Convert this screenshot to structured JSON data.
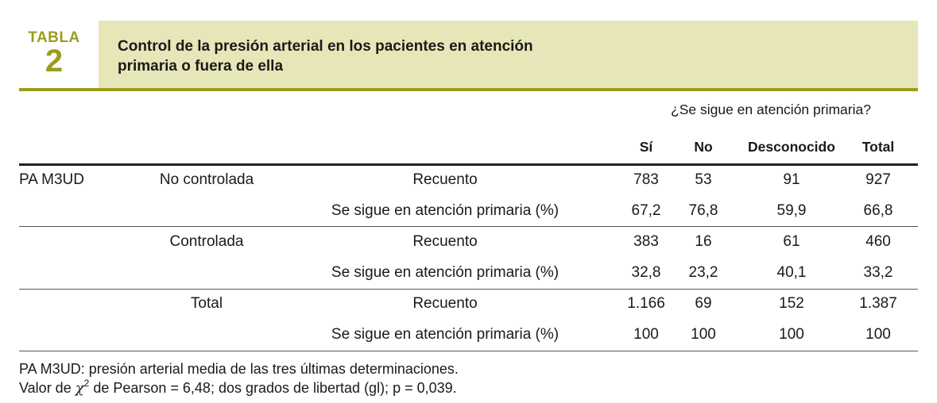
{
  "header": {
    "tabla_label": "TABLA",
    "tabla_number": "2",
    "title_line1": "Control de la presión arterial en los pacientes en atención",
    "title_line2": "primaria o fuera de ella"
  },
  "table": {
    "super_header": "¿Se sigue en atención primaria?",
    "columns": [
      "Sí",
      "No",
      "Desconocido",
      "Total"
    ],
    "rows": [
      {
        "group": "PA M3UD",
        "subgroup": "No controlada",
        "measure": "Recuento",
        "values": [
          "783",
          "53",
          "91",
          "927"
        ]
      },
      {
        "group": "",
        "subgroup": "",
        "measure": "Se sigue en atención primaria (%)",
        "values": [
          "67,2",
          "76,8",
          "59,9",
          "66,8"
        ]
      },
      {
        "group": "",
        "subgroup": "Controlada",
        "measure": "Recuento",
        "values": [
          "383",
          "16",
          "61",
          "460"
        ]
      },
      {
        "group": "",
        "subgroup": "",
        "measure": "Se sigue en atención primaria (%)",
        "values": [
          "32,8",
          "23,2",
          "40,1",
          "33,2"
        ]
      },
      {
        "group": "",
        "subgroup": "Total",
        "measure": "Recuento",
        "values": [
          "1.166",
          "69",
          "152",
          "1.387"
        ]
      },
      {
        "group": "",
        "subgroup": "",
        "measure": "Se sigue en atención primaria (%)",
        "values": [
          "100",
          "100",
          "100",
          "100"
        ]
      }
    ]
  },
  "footnotes": {
    "line1": "PA M3UD: presión arterial media de las tres últimas determinaciones.",
    "line2_prefix": "Valor de ",
    "chi_symbol": "χ",
    "chi_exponent": "2",
    "line2_suffix": " de Pearson = 6,48; dos grados de libertad (gl); p = 0,039."
  },
  "colors": {
    "accent": "#9b9c1d",
    "header_band": "#e6e6b8"
  }
}
